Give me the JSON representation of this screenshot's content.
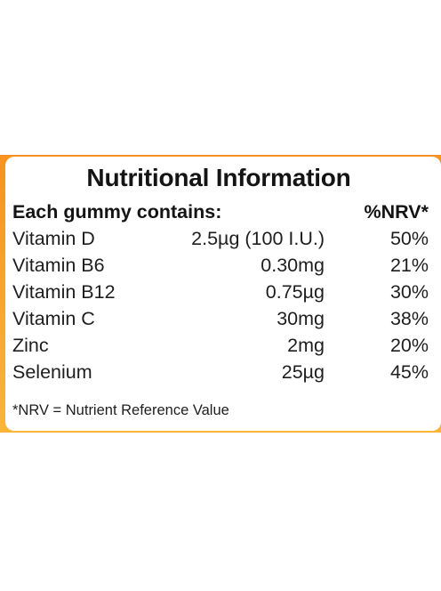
{
  "label": {
    "title": "Nutritional Information",
    "header": {
      "name": "Each gummy contains:",
      "nrv": "%NRV*"
    },
    "rows": [
      {
        "name": "Vitamin D",
        "amount": "2.5µg (100 I.U.)",
        "nrv": "50%"
      },
      {
        "name": "Vitamin B6",
        "amount": "0.30mg",
        "nrv": "21%"
      },
      {
        "name": "Vitamin B12",
        "amount": "0.75µg",
        "nrv": "30%"
      },
      {
        "name": "Vitamin C",
        "amount": "30mg",
        "nrv": "38%"
      },
      {
        "name": "Zinc",
        "amount": "2mg",
        "nrv": "20%"
      },
      {
        "name": "Selenium",
        "amount": "25µg",
        "nrv": "45%"
      }
    ],
    "footnote": "*NRV = Nutrient Reference Value"
  },
  "colors": {
    "band_top": "#f7921e",
    "band_bottom": "#fbb43a",
    "text": "#1a1a1a",
    "card": "#ffffff"
  }
}
